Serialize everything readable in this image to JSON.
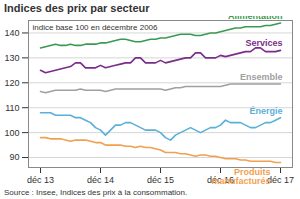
{
  "chart_data": {
    "type": "line",
    "title": "Indices des prix par secteur",
    "subtitle": "indice base 100 en décembre 2006",
    "source": "Source : Insee, Indices des prix à la consommation.",
    "categories": [
      "déc 13",
      null,
      null,
      null,
      null,
      null,
      null,
      null,
      null,
      null,
      null,
      null,
      "déc 14",
      null,
      null,
      null,
      null,
      null,
      null,
      null,
      null,
      null,
      null,
      null,
      "déc 15",
      null,
      null,
      null,
      null,
      null,
      null,
      null,
      null,
      null,
      null,
      null,
      "déc 16",
      null,
      null,
      null,
      null,
      null,
      null,
      null,
      null,
      null,
      null,
      null,
      "déc 17"
    ],
    "ylim": [
      86,
      145
    ],
    "yticks": [
      90,
      100,
      110,
      120,
      130,
      140
    ],
    "grid": true,
    "series": [
      {
        "name": "Alimentation",
        "color": "#3a9a50",
        "values": [
          134,
          134.5,
          135,
          135.5,
          135,
          135,
          135.5,
          135,
          135,
          135.5,
          135.5,
          135.5,
          136,
          136,
          136.5,
          137,
          137.5,
          137.5,
          137,
          136.5,
          136.5,
          137,
          137.5,
          137.5,
          138,
          138,
          138.5,
          139,
          139.5,
          139.5,
          139.5,
          139,
          139,
          139.5,
          140,
          140,
          140.5,
          141,
          141.5,
          142,
          142,
          142.5,
          142.5,
          142.5,
          142.5,
          143,
          143,
          143.5,
          144
        ]
      },
      {
        "name": "Services",
        "color": "#7b2d8b",
        "values": [
          125,
          124,
          124.5,
          125,
          125.5,
          126,
          126.5,
          128,
          128,
          126,
          126,
          126,
          127,
          126,
          126.5,
          127,
          127.5,
          128,
          128,
          130,
          130,
          128,
          128,
          128,
          129,
          128,
          128.5,
          129,
          129.5,
          130,
          130,
          132,
          132,
          130,
          130,
          130,
          131,
          130.5,
          131,
          131.5,
          132,
          132.5,
          132.5,
          134,
          134,
          132.5,
          132.5,
          132.5,
          133
        ]
      },
      {
        "name": "Ensemble",
        "color": "#a0a0a0",
        "values": [
          116.5,
          116,
          116.5,
          117,
          117,
          117,
          117,
          117,
          117.5,
          117,
          117,
          117,
          117,
          116.5,
          117,
          117.5,
          117.5,
          117.5,
          117.5,
          117.5,
          117.5,
          117.5,
          117.5,
          117.5,
          117.5,
          117,
          117.5,
          118,
          118,
          118.5,
          118.5,
          118.5,
          118.5,
          118.5,
          118.5,
          118.5,
          118.5,
          119,
          119.5,
          119.5,
          119.5,
          119.5,
          119.5,
          119.5,
          119.5,
          119.5,
          119.5,
          119.5,
          119.5
        ]
      },
      {
        "name": "Énergie",
        "color": "#5bb0d8",
        "values": [
          108,
          108,
          108,
          107,
          107,
          107,
          107,
          106,
          106,
          105,
          104,
          102,
          101,
          99,
          101,
          103,
          103,
          104,
          104,
          103,
          102,
          101,
          101,
          101,
          100,
          98,
          97,
          99,
          100,
          101,
          102,
          101,
          100,
          101,
          102,
          102,
          103,
          105,
          104,
          104,
          104,
          103,
          102,
          102,
          103,
          104,
          104,
          105,
          106
        ]
      },
      {
        "name": "Produits manufacturés",
        "color": "#f0a050",
        "values": [
          98,
          98,
          97.5,
          97.5,
          97.5,
          97,
          96.5,
          97,
          97,
          97,
          96.5,
          96,
          96,
          95,
          95,
          95,
          95,
          94.5,
          94.5,
          94,
          94.5,
          94,
          94,
          93.5,
          93,
          92,
          92,
          92,
          91.5,
          91.5,
          91,
          90.5,
          91,
          91,
          90.5,
          90.5,
          90,
          89.5,
          89.5,
          89.5,
          89,
          89,
          88.5,
          88.5,
          88.5,
          88.5,
          88.5,
          88,
          88
        ]
      }
    ]
  }
}
